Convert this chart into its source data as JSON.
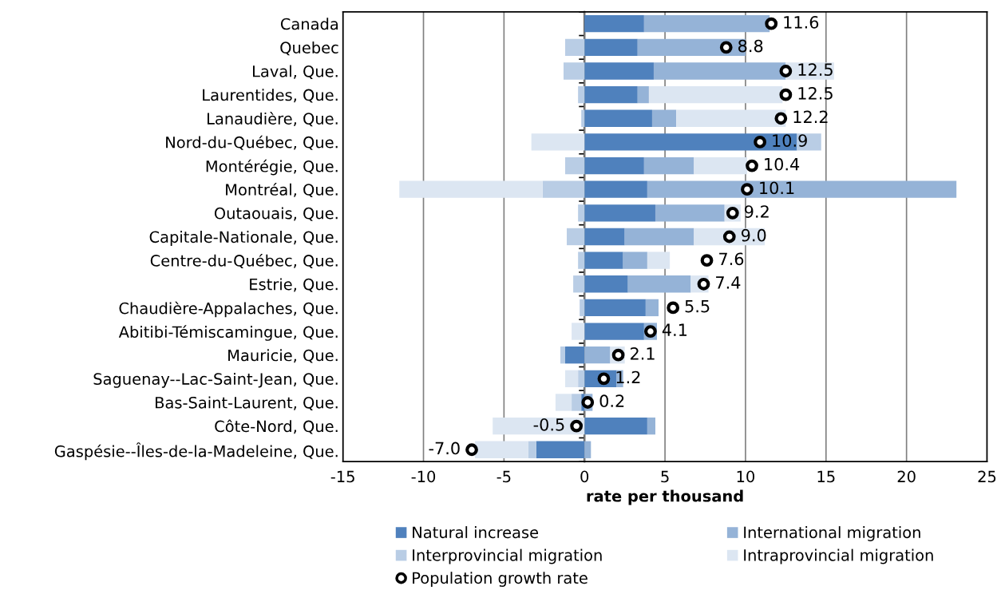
{
  "chart_data": {
    "type": "bar",
    "orientation": "horizontal",
    "stacked": true,
    "categories": [
      "Canada",
      "Quebec",
      "Laval, Que.",
      "Laurentides, Que.",
      "Lanaudière, Que.",
      "Nord-du-Québec, Que.",
      "Montérégie, Que.",
      "Montréal, Que.",
      "Outaouais, Que.",
      "Capitale-Nationale, Que.",
      "Centre-du-Québec, Que.",
      "Estrie, Que.",
      "Chaudière-Appalaches, Que.",
      "Abitibi-Témiscamingue, Que.",
      "Mauricie, Que.",
      "Saguenay--Lac-Saint-Jean, Que.",
      "Bas-Saint-Laurent, Que.",
      "Côte-Nord, Que.",
      "Gaspésie--Îles-de-la-Madeleine, Que."
    ],
    "series": [
      {
        "name": "Natural increase",
        "color": "#4f81bd",
        "values": [
          3.7,
          3.3,
          4.3,
          3.3,
          4.2,
          13.2,
          3.7,
          3.9,
          4.4,
          2.5,
          2.4,
          2.7,
          3.8,
          3.7,
          -1.2,
          2.0,
          -0.2,
          3.9,
          -3.0
        ]
      },
      {
        "name": "International migration",
        "color": "#95b3d7",
        "values": [
          7.8,
          6.7,
          8.2,
          0.7,
          1.5,
          0,
          3.1,
          19.2,
          4.3,
          4.3,
          1.5,
          3.9,
          0.8,
          0.8,
          1.6,
          0.4,
          0.5,
          0.5,
          0.4
        ]
      },
      {
        "name": "Interprovincial migration",
        "color": "#b9cde5",
        "values": [
          0,
          -1.2,
          -1.3,
          -0.4,
          -0.2,
          1.5,
          -1.2,
          -2.6,
          -0.4,
          -1.1,
          -0.4,
          -0.7,
          -0.3,
          0,
          -0.3,
          -0.4,
          -0.6,
          0,
          -0.5
        ]
      },
      {
        "name": "Intraprovincial migration",
        "color": "#dce6f2",
        "values": [
          0,
          0,
          3.0,
          8.3,
          6.8,
          -3.3,
          3.3,
          -8.9,
          1.0,
          4.4,
          1.4,
          1.1,
          0,
          -0.8,
          0.9,
          -0.8,
          -1.0,
          -5.7,
          -3.3
        ]
      },
      {
        "name": "Population growth rate",
        "type": "scatter",
        "color": "#000000",
        "marker": "circle",
        "values": [
          11.6,
          8.8,
          12.5,
          12.5,
          12.2,
          10.9,
          10.4,
          10.1,
          9.2,
          9.0,
          7.6,
          7.4,
          5.5,
          4.1,
          2.1,
          1.2,
          0.2,
          -0.5,
          -7.0
        ],
        "value_labels": [
          "11.6",
          "8.8",
          "12.5",
          "12.5",
          "12.2",
          "10.9",
          "10.4",
          "10.1",
          "9.2",
          "9.0",
          "7.6",
          "7.4",
          "5.5",
          "4.1",
          "2.1",
          "1.2",
          "0.2",
          "-0.5",
          "-7.0"
        ]
      }
    ],
    "xlabel": "rate per thousand",
    "xlim": [
      -15,
      25
    ],
    "xticks": [
      -15,
      -10,
      -5,
      0,
      5,
      10,
      15,
      20,
      25
    ],
    "grid": "x",
    "legend": "bottom"
  }
}
